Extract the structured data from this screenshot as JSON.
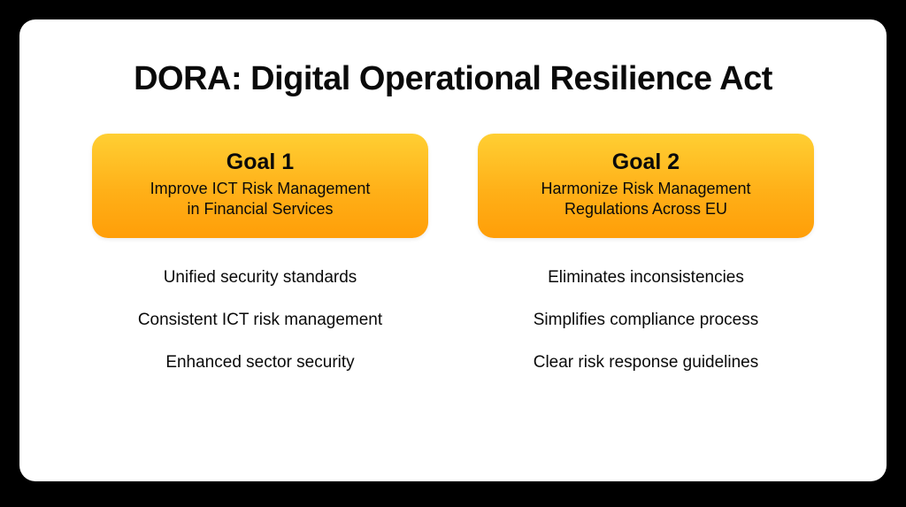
{
  "type": "infographic",
  "title": "DORA: Digital Operational Resilience Act",
  "title_fontsize": 38,
  "title_fontweight": 800,
  "title_color": "#0a0a0a",
  "card": {
    "background_color": "#ffffff",
    "border_radius": 18,
    "shadow_color": "rgba(0,0,0,0.55)"
  },
  "page_background": "#000000",
  "goal_box": {
    "gradient_top": "#ffcf33",
    "gradient_mid": "#ffb018",
    "gradient_bottom": "#ff9e08",
    "border_radius": 18,
    "title_fontsize": 25,
    "title_fontweight": 700,
    "desc_fontsize": 18,
    "text_color": "#0a0a0a"
  },
  "bullet_style": {
    "fontsize": 19,
    "color": "#0a0a0a",
    "gap": 26
  },
  "goals": [
    {
      "title": "Goal 1",
      "desc": "Improve ICT Risk Management\nin Financial Services",
      "bullets": [
        "Unified security standards",
        "Consistent ICT risk management",
        "Enhanced sector security"
      ]
    },
    {
      "title": "Goal 2",
      "desc": "Harmonize Risk Management\nRegulations Across EU",
      "bullets": [
        "Eliminates inconsistencies",
        "Simplifies compliance process",
        "Clear risk response guidelines"
      ]
    }
  ]
}
